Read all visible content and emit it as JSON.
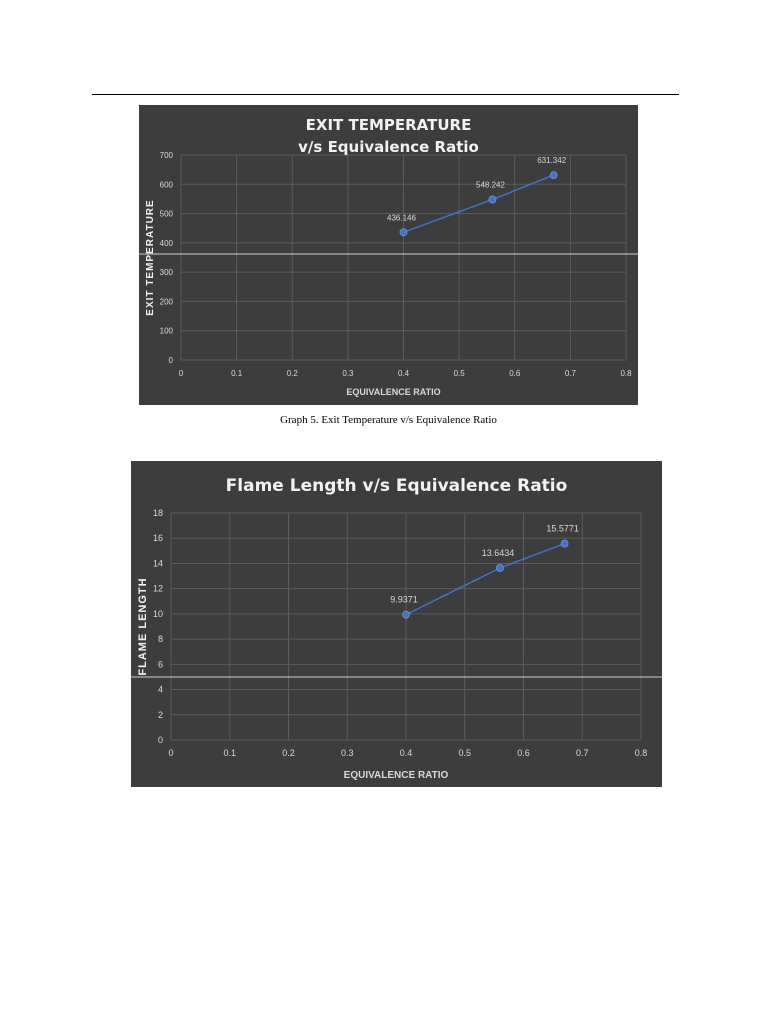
{
  "caption": "Graph 5. Exit Temperature v/s Equivalence Ratio",
  "colors": {
    "chart_bg": "#3d3d3d",
    "grid": "#5c5c5c",
    "series": "#4472c4",
    "text": "#d9d9d9",
    "title": "#f2f2f2"
  },
  "chart_data": [
    {
      "type": "line",
      "title": "EXIT TEMPERATURE",
      "subtitle": "v/s Equivalence Ratio",
      "xlabel": "EQUIVALENCE RATIO",
      "ylabel": "EXIT TEMPERATURE",
      "xlim": [
        0,
        0.8
      ],
      "ylim": [
        0,
        700
      ],
      "xticks": [
        "0",
        "0.1",
        "0.2",
        "0.3",
        "0.4",
        "0.5",
        "0.6",
        "0.7",
        "0.8"
      ],
      "yticks": [
        "0",
        "100",
        "200",
        "300",
        "400",
        "500",
        "600",
        "700"
      ],
      "grid": true,
      "legend": "none",
      "series": [
        {
          "x": [
            0.4,
            0.56,
            0.67
          ],
          "y": [
            436.146,
            548.242,
            631.342
          ],
          "labels": [
            "436.146",
            "548.242",
            "631.342"
          ]
        }
      ]
    },
    {
      "type": "line",
      "title": "Flame Length v/s Equivalence Ratio",
      "xlabel": "EQUIVALENCE RATIO",
      "ylabel": "FLAME LENGTH",
      "xlim": [
        0,
        0.8
      ],
      "ylim": [
        0,
        18
      ],
      "xticks": [
        "0",
        "0.1",
        "0.2",
        "0.3",
        "0.4",
        "0.5",
        "0.6",
        "0.7",
        "0.8"
      ],
      "yticks": [
        "0",
        "2",
        "4",
        "6",
        "8",
        "10",
        "12",
        "14",
        "16",
        "18"
      ],
      "grid": true,
      "legend": "none",
      "series": [
        {
          "x": [
            0.4,
            0.56,
            0.67
          ],
          "y": [
            9.9371,
            13.6434,
            15.5771
          ],
          "labels": [
            "9.9371",
            "13.6434",
            "15.5771"
          ]
        }
      ]
    }
  ]
}
